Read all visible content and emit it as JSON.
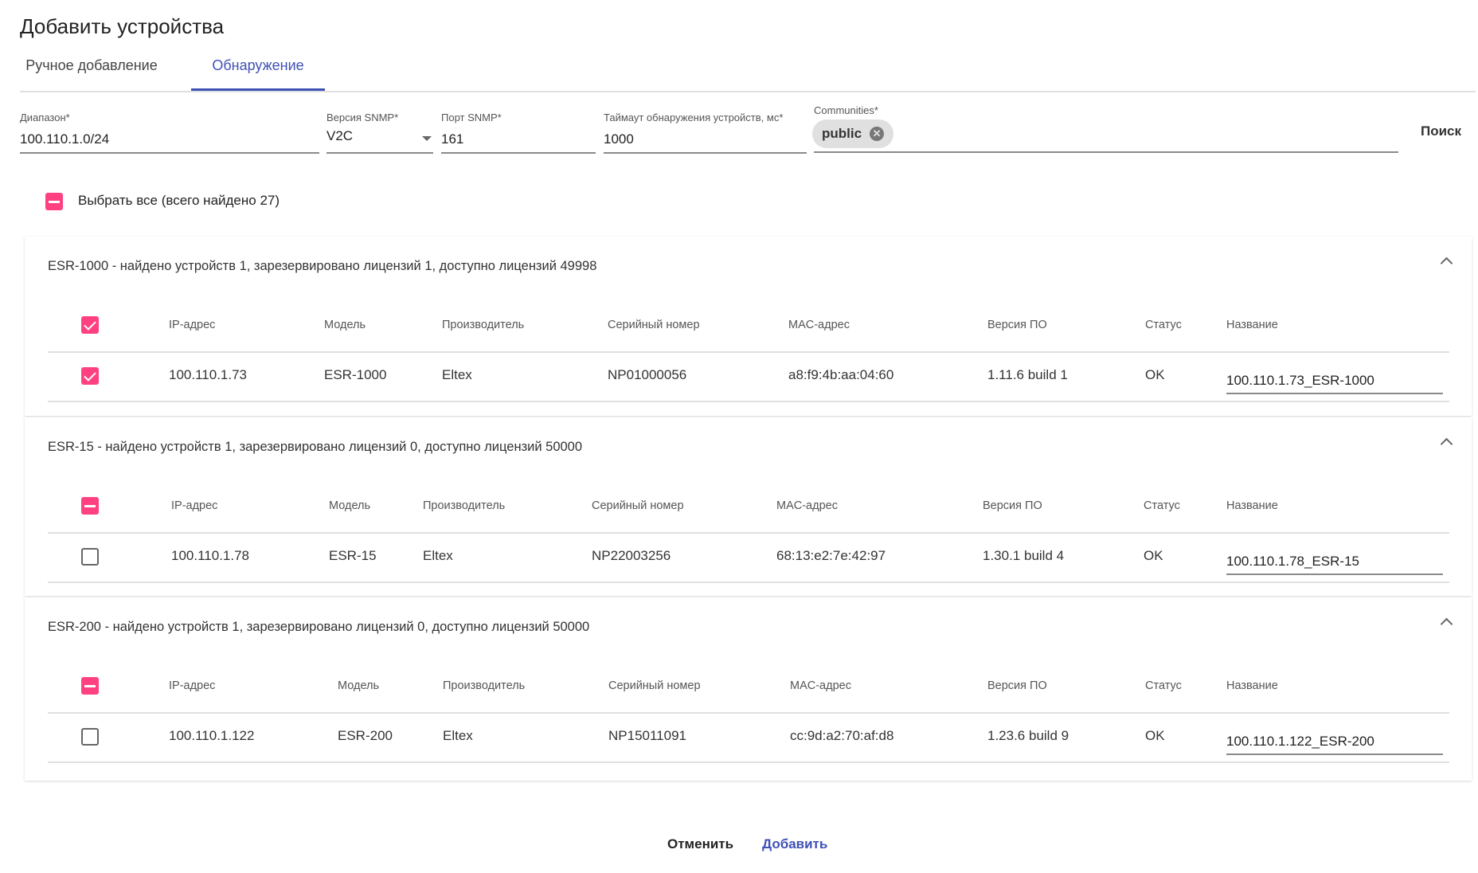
{
  "title": "Добавить устройства",
  "tabs": [
    {
      "label": "Ручное добавление",
      "active": false
    },
    {
      "label": "Обнаружение",
      "active": true
    }
  ],
  "form": {
    "range": {
      "label": "Диапазон*",
      "value": "100.110.1.0/24"
    },
    "snmp_version": {
      "label": "Версия SNMP*",
      "value": "V2C"
    },
    "snmp_port": {
      "label": "Порт SNMP*",
      "value": "161"
    },
    "timeout": {
      "label": "Таймаут обнаружения устройств, мс*",
      "value": "1000"
    },
    "communities": {
      "label": "Communities*",
      "chips": [
        "public"
      ]
    },
    "search_label": "Поиск"
  },
  "select_all": {
    "label": "Выбрать все (всего найдено 27)",
    "state": "indeterminate"
  },
  "columns": [
    "IP-адрес",
    "Модель",
    "Производитель",
    "Серийный номер",
    "MAC-адрес",
    "Версия ПО",
    "Статус",
    "Название"
  ],
  "groups": [
    {
      "title": "ESR-1000 - найдено устройств 1, зарезервировано лицензий 1, доступно лицензий 49998",
      "header_state": "checked",
      "rows": [
        {
          "checked": true,
          "ip": "100.110.1.73",
          "model": "ESR-1000",
          "vendor": "Eltex",
          "serial": "NP01000056",
          "mac": "a8:f9:4b:aa:04:60",
          "version": "1.11.6 build 1",
          "status": "OK",
          "name": "100.110.1.73_ESR-1000"
        }
      ]
    },
    {
      "title": "ESR-15 - найдено устройств 1, зарезервировано лицензий 0, доступно лицензий 50000",
      "header_state": "indeterminate",
      "rows": [
        {
          "checked": false,
          "ip": "100.110.1.78",
          "model": "ESR-15",
          "vendor": "Eltex",
          "serial": "NP22003256",
          "mac": "68:13:e2:7e:42:97",
          "version": "1.30.1 build 4",
          "status": "OK",
          "name": "100.110.1.78_ESR-15"
        }
      ]
    },
    {
      "title": "ESR-200 - найдено устройств 1, зарезервировано лицензий 0, доступно лицензий 50000",
      "header_state": "indeterminate",
      "rows": [
        {
          "checked": false,
          "ip": "100.110.1.122",
          "model": "ESR-200",
          "vendor": "Eltex",
          "serial": "NP15011091",
          "mac": "cc:9d:a2:70:af:d8",
          "version": "1.23.6 build 9",
          "status": "OK",
          "name": "100.110.1.122_ESR-200"
        }
      ]
    }
  ],
  "footer": {
    "cancel_label": "Отменить",
    "add_label": "Добавить"
  },
  "colors": {
    "accent": "#3f51b5",
    "checkbox": "#ff4081"
  }
}
